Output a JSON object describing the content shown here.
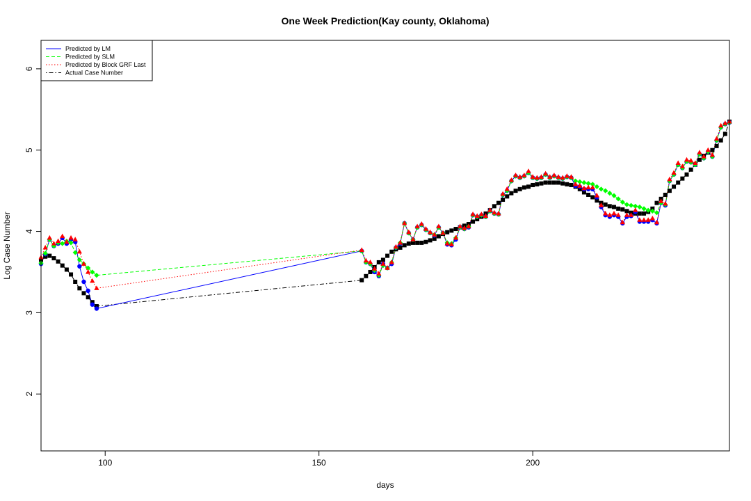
{
  "chart_data": {
    "type": "line",
    "title": "One Week Prediction(Kay county, Oklahoma)",
    "xlabel": "days",
    "ylabel": "Log Case Number",
    "xlim": [
      85,
      246
    ],
    "ylim": [
      1.3,
      6.35
    ],
    "x_ticks": [
      100,
      150,
      200
    ],
    "x_tick_labels": [
      "100",
      "150",
      "200"
    ],
    "y_ticks": [
      2,
      3,
      4,
      5,
      6
    ],
    "y_tick_labels": [
      "2",
      "3",
      "4",
      "5",
      "6"
    ],
    "grid": false,
    "legend_position": "top-left",
    "legend": [
      {
        "label": "Predicted by LM",
        "color": "#0000ff",
        "dash": "solid",
        "marker": "circle"
      },
      {
        "label": "Predicted by SLM",
        "color": "#00ff00",
        "dash": "dashed",
        "marker": "diamond"
      },
      {
        "label": "Predicted by Block GRF Last",
        "color": "#ff0000",
        "dash": "dotted",
        "marker": "triangle"
      },
      {
        "label": "Actual Case Number",
        "color": "#000000",
        "dash": "dotdash",
        "marker": "square"
      }
    ],
    "series": [
      {
        "name": "Actual Case Number",
        "color": "#000000",
        "marker": "square",
        "x": [
          85,
          86,
          87,
          88,
          89,
          90,
          91,
          92,
          93,
          94,
          95,
          96,
          97,
          98,
          160,
          161,
          162,
          163,
          164,
          165,
          166,
          167,
          168,
          169,
          170,
          171,
          172,
          173,
          174,
          175,
          176,
          177,
          178,
          179,
          180,
          181,
          182,
          183,
          184,
          185,
          186,
          187,
          188,
          189,
          190,
          191,
          192,
          193,
          194,
          195,
          196,
          197,
          198,
          199,
          200,
          201,
          202,
          203,
          204,
          205,
          206,
          207,
          208,
          209,
          210,
          211,
          212,
          213,
          214,
          215,
          216,
          217,
          218,
          219,
          220,
          221,
          222,
          223,
          224,
          225,
          226,
          227,
          228,
          229,
          230,
          231,
          232,
          233,
          234,
          235,
          236,
          237,
          238,
          239,
          240,
          241,
          242,
          243,
          244,
          245,
          246
        ],
        "y": [
          3.65,
          3.69,
          3.7,
          3.67,
          3.63,
          3.58,
          3.53,
          3.47,
          3.38,
          3.3,
          3.24,
          3.19,
          3.13,
          3.08,
          3.4,
          3.45,
          3.5,
          3.56,
          3.62,
          3.65,
          3.7,
          3.75,
          3.78,
          3.8,
          3.83,
          3.85,
          3.86,
          3.86,
          3.86,
          3.87,
          3.89,
          3.91,
          3.94,
          3.97,
          3.99,
          4.01,
          4.03,
          4.05,
          4.07,
          4.09,
          4.12,
          4.15,
          4.18,
          4.22,
          4.26,
          4.31,
          4.35,
          4.39,
          4.43,
          4.47,
          4.5,
          4.52,
          4.54,
          4.55,
          4.57,
          4.58,
          4.59,
          4.6,
          4.6,
          4.6,
          4.6,
          4.59,
          4.58,
          4.57,
          4.55,
          4.52,
          4.48,
          4.45,
          4.42,
          4.38,
          4.35,
          4.33,
          4.31,
          4.3,
          4.28,
          4.27,
          4.25,
          4.23,
          4.22,
          4.22,
          4.22,
          4.24,
          4.28,
          4.35,
          4.4,
          4.45,
          4.5,
          4.55,
          4.6,
          4.65,
          4.7,
          4.76,
          4.82,
          4.88,
          4.93,
          4.97,
          5.0,
          5.05,
          5.12,
          5.2,
          5.35
        ]
      },
      {
        "name": "Predicted by LM",
        "color": "#0000ff",
        "marker": "circle",
        "x": [
          85,
          86,
          87,
          88,
          89,
          90,
          91,
          92,
          93,
          94,
          95,
          96,
          97,
          98,
          160,
          161,
          162,
          163,
          164,
          165,
          166,
          167,
          168,
          169,
          170,
          171,
          172,
          173,
          174,
          175,
          176,
          177,
          178,
          179,
          180,
          181,
          182,
          183,
          184,
          185,
          186,
          187,
          188,
          189,
          190,
          191,
          192,
          193,
          194,
          195,
          196,
          197,
          198,
          199,
          200,
          201,
          202,
          203,
          204,
          205,
          206,
          207,
          208,
          209,
          210,
          211,
          212,
          213,
          214,
          215,
          216,
          217,
          218,
          219,
          220,
          221,
          222,
          223,
          224,
          225,
          226,
          227,
          228,
          229,
          230,
          231,
          232,
          233,
          234,
          235,
          236,
          237,
          238,
          239,
          240,
          241,
          242,
          243,
          244,
          245,
          246
        ],
        "y": [
          3.6,
          3.72,
          3.9,
          3.82,
          3.85,
          3.92,
          3.85,
          3.9,
          3.87,
          3.57,
          3.38,
          3.27,
          3.1,
          3.05,
          3.76,
          3.62,
          3.6,
          3.5,
          3.45,
          3.6,
          3.55,
          3.6,
          3.8,
          3.85,
          4.1,
          3.98,
          3.9,
          4.05,
          4.08,
          4.02,
          3.98,
          3.95,
          4.05,
          3.98,
          3.84,
          3.83,
          3.9,
          4.05,
          4.03,
          4.05,
          4.2,
          4.18,
          4.2,
          4.18,
          4.25,
          4.22,
          4.21,
          4.45,
          4.5,
          4.62,
          4.68,
          4.66,
          4.68,
          4.72,
          4.66,
          4.65,
          4.66,
          4.7,
          4.66,
          4.68,
          4.66,
          4.65,
          4.67,
          4.66,
          4.56,
          4.55,
          4.52,
          4.52,
          4.52,
          4.42,
          4.3,
          4.2,
          4.18,
          4.2,
          4.18,
          4.1,
          4.18,
          4.19,
          4.24,
          4.12,
          4.12,
          4.12,
          4.14,
          4.1,
          4.35,
          4.32,
          4.62,
          4.7,
          4.82,
          4.78,
          4.86,
          4.85,
          4.82,
          4.95,
          4.9,
          4.98,
          4.92,
          5.12,
          5.28,
          5.32,
          5.34
        ]
      },
      {
        "name": "Predicted by SLM",
        "color": "#00ff00",
        "marker": "diamond",
        "x": [
          85,
          86,
          87,
          88,
          89,
          90,
          91,
          92,
          93,
          94,
          95,
          96,
          97,
          98,
          160,
          161,
          162,
          163,
          164,
          165,
          166,
          167,
          168,
          169,
          170,
          171,
          172,
          173,
          174,
          175,
          176,
          177,
          178,
          179,
          180,
          181,
          182,
          183,
          184,
          185,
          186,
          187,
          188,
          189,
          190,
          191,
          192,
          193,
          194,
          195,
          196,
          197,
          198,
          199,
          200,
          201,
          202,
          203,
          204,
          205,
          206,
          207,
          208,
          209,
          210,
          211,
          212,
          213,
          214,
          215,
          216,
          217,
          218,
          219,
          220,
          221,
          222,
          223,
          224,
          225,
          226,
          227,
          228,
          229,
          230,
          231,
          232,
          233,
          234,
          235,
          236,
          237,
          238,
          239,
          240,
          241,
          242,
          243,
          244,
          245,
          246
        ],
        "y": [
          3.61,
          3.73,
          3.9,
          3.82,
          3.86,
          3.85,
          3.88,
          3.86,
          3.74,
          3.65,
          3.6,
          3.55,
          3.5,
          3.46,
          3.76,
          3.62,
          3.6,
          3.52,
          3.46,
          3.58,
          3.55,
          3.62,
          3.8,
          3.86,
          4.1,
          3.98,
          3.9,
          4.05,
          4.08,
          4.02,
          3.98,
          3.96,
          4.05,
          3.98,
          3.86,
          3.85,
          3.92,
          4.05,
          4.03,
          4.06,
          4.2,
          4.18,
          4.2,
          4.18,
          4.25,
          4.22,
          4.21,
          4.45,
          4.5,
          4.62,
          4.68,
          4.66,
          4.68,
          4.72,
          4.66,
          4.65,
          4.66,
          4.7,
          4.66,
          4.68,
          4.66,
          4.65,
          4.67,
          4.66,
          4.62,
          4.61,
          4.6,
          4.59,
          4.58,
          4.55,
          4.52,
          4.5,
          4.47,
          4.44,
          4.4,
          4.36,
          4.33,
          4.32,
          4.31,
          4.3,
          4.28,
          4.26,
          4.25,
          4.23,
          4.35,
          4.33,
          4.62,
          4.7,
          4.82,
          4.78,
          4.86,
          4.85,
          4.82,
          4.95,
          4.9,
          4.98,
          4.92,
          5.12,
          5.28,
          5.32,
          5.34
        ]
      },
      {
        "name": "Predicted by Block GRF Last",
        "color": "#ff0000",
        "marker": "triangle",
        "x": [
          85,
          86,
          87,
          88,
          89,
          90,
          91,
          92,
          93,
          94,
          95,
          96,
          97,
          98,
          160,
          161,
          162,
          163,
          164,
          165,
          166,
          167,
          168,
          169,
          170,
          171,
          172,
          173,
          174,
          175,
          176,
          177,
          178,
          179,
          180,
          181,
          182,
          183,
          184,
          185,
          186,
          187,
          188,
          189,
          190,
          191,
          192,
          193,
          194,
          195,
          196,
          197,
          198,
          199,
          200,
          201,
          202,
          203,
          204,
          205,
          206,
          207,
          208,
          209,
          210,
          211,
          212,
          213,
          214,
          215,
          216,
          217,
          218,
          219,
          220,
          221,
          222,
          223,
          224,
          225,
          226,
          227,
          228,
          229,
          230,
          231,
          232,
          233,
          234,
          235,
          236,
          237,
          238,
          239,
          240,
          241,
          242,
          243,
          244,
          245,
          246
        ],
        "y": [
          3.68,
          3.8,
          3.92,
          3.85,
          3.88,
          3.94,
          3.87,
          3.92,
          3.9,
          3.75,
          3.6,
          3.5,
          3.39,
          3.3,
          3.77,
          3.64,
          3.62,
          3.54,
          3.48,
          3.6,
          3.55,
          3.62,
          3.81,
          3.86,
          4.1,
          3.99,
          3.9,
          4.06,
          4.09,
          4.03,
          3.99,
          3.96,
          4.06,
          3.98,
          3.85,
          3.84,
          3.92,
          4.06,
          4.04,
          4.06,
          4.21,
          4.19,
          4.21,
          4.19,
          4.26,
          4.23,
          4.22,
          4.46,
          4.52,
          4.63,
          4.69,
          4.67,
          4.69,
          4.74,
          4.67,
          4.66,
          4.67,
          4.71,
          4.67,
          4.69,
          4.67,
          4.66,
          4.68,
          4.67,
          4.58,
          4.56,
          4.53,
          4.54,
          4.54,
          4.44,
          4.32,
          4.22,
          4.2,
          4.22,
          4.2,
          4.11,
          4.2,
          4.2,
          4.26,
          4.14,
          4.14,
          4.14,
          4.16,
          4.11,
          4.37,
          4.34,
          4.64,
          4.72,
          4.84,
          4.8,
          4.88,
          4.87,
          4.84,
          4.97,
          4.92,
          5.0,
          4.94,
          5.14,
          5.3,
          5.33,
          5.35
        ]
      }
    ]
  }
}
